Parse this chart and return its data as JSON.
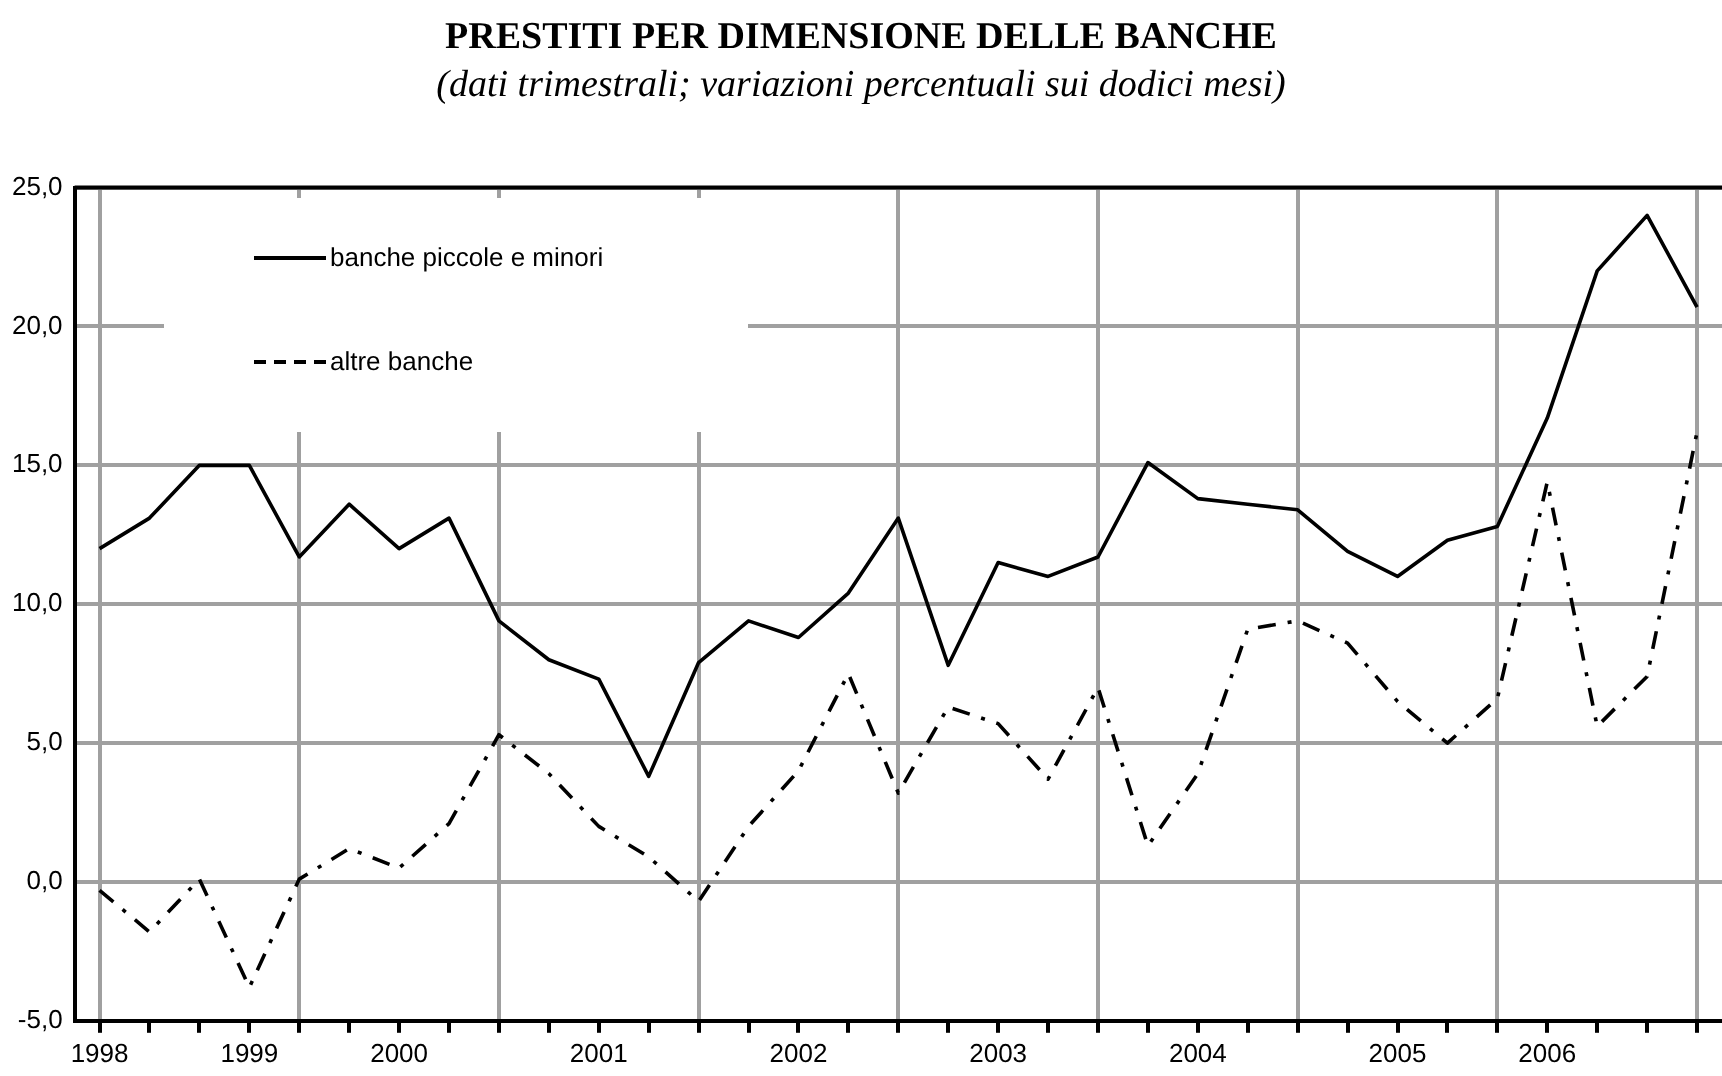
{
  "chart_data": {
    "type": "line",
    "title": "PRESTITI PER DIMENSIONE DELLE BANCHE",
    "subtitle": "(dati trimestrali; variazioni percentuali sui dodici mesi)",
    "categories": [
      "1998",
      null,
      null,
      "1999",
      null,
      null,
      "2000",
      null,
      null,
      null,
      "2001",
      null,
      null,
      null,
      "2002",
      null,
      null,
      null,
      "2003",
      null,
      null,
      null,
      "2004",
      null,
      null,
      null,
      "2005",
      null,
      null,
      "2006",
      null,
      null,
      null
    ],
    "series": [
      {
        "name": "banche piccole e minori",
        "color": "#000000",
        "line_style": "solid",
        "values": [
          12.0,
          13.1,
          15.0,
          15.0,
          11.7,
          13.6,
          12.0,
          13.1,
          9.4,
          8.0,
          7.3,
          3.8,
          7.9,
          9.4,
          8.8,
          10.4,
          13.1,
          7.8,
          11.5,
          11.0,
          11.7,
          15.1,
          13.8,
          13.6,
          13.4,
          11.9,
          11.0,
          12.3,
          12.8,
          16.7,
          22.0,
          24.0,
          20.7
        ]
      },
      {
        "name": "altre banche",
        "color": "#000000",
        "line_style": "dashed",
        "values": [
          -0.3,
          -1.8,
          0.1,
          -3.8,
          0.1,
          1.2,
          0.5,
          2.1,
          5.3,
          3.9,
          2.0,
          0.9,
          -0.7,
          2.0,
          4.0,
          7.5,
          3.2,
          6.3,
          5.7,
          3.7,
          7.0,
          1.3,
          3.9,
          9.1,
          9.4,
          8.6,
          6.5,
          5.0,
          6.6,
          14.4,
          5.6,
          7.4,
          16.2
        ]
      }
    ],
    "ylim": [
      -5,
      25
    ],
    "yticks": [
      {
        "value": -5,
        "label": "-5,0"
      },
      {
        "value": 0,
        "label": "0,0"
      },
      {
        "value": 5,
        "label": "5,0"
      },
      {
        "value": 10,
        "label": "10,0"
      },
      {
        "value": 15,
        "label": "15,0"
      },
      {
        "value": 20,
        "label": "20,0"
      },
      {
        "value": 25,
        "label": "25,0"
      }
    ],
    "grid": true,
    "legend": "top left",
    "marker": "none"
  }
}
